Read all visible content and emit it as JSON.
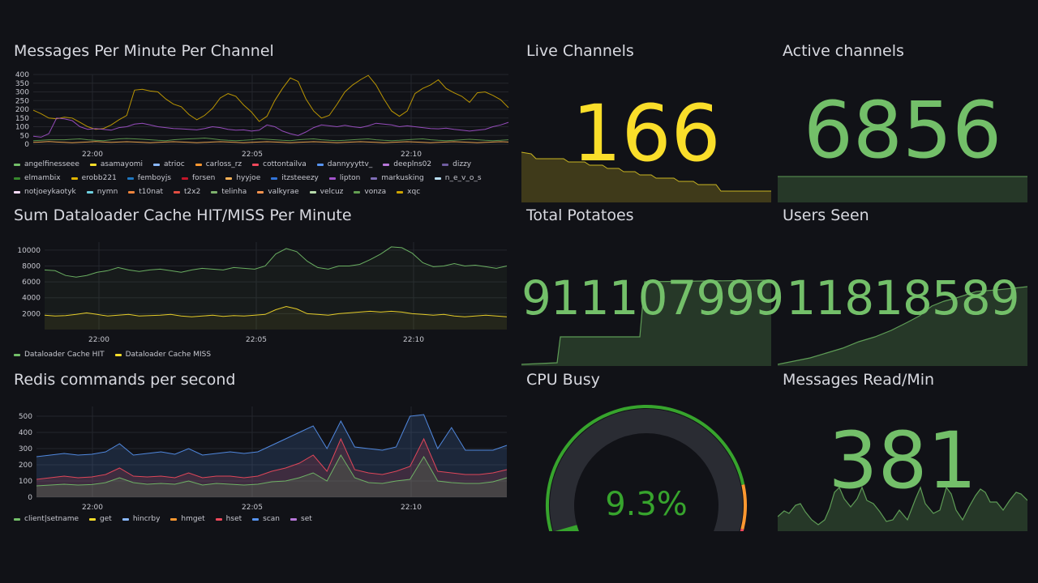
{
  "panels": {
    "messages": {
      "title": "Messages Per Minute Per Channel",
      "legend": [
        {
          "name": "angelfinesseee",
          "color": "#73bf69"
        },
        {
          "name": "asamayomi",
          "color": "#fade2a"
        },
        {
          "name": "atrioc",
          "color": "#8ab8ff"
        },
        {
          "name": "carloss_rz",
          "color": "#ff9830"
        },
        {
          "name": "cottontailva",
          "color": "#f2495c"
        },
        {
          "name": "dannyyyttv_",
          "color": "#5794f2"
        },
        {
          "name": "deeplns02",
          "color": "#b877d9"
        },
        {
          "name": "dizzy",
          "color": "#705da0"
        },
        {
          "name": "elmambix",
          "color": "#37872d"
        },
        {
          "name": "erobb221",
          "color": "#e0b400"
        },
        {
          "name": "femboyjs",
          "color": "#1f78c1"
        },
        {
          "name": "forsen",
          "color": "#c4162a"
        },
        {
          "name": "hyyjoe",
          "color": "#ffb357"
        },
        {
          "name": "itzsteeezy",
          "color": "#3274d9"
        },
        {
          "name": "lipton",
          "color": "#a352cc"
        },
        {
          "name": "markusking",
          "color": "#806eb7"
        },
        {
          "name": "n_e_v_o_s",
          "color": "#badff4"
        },
        {
          "name": "notjoeykaotyk",
          "color": "#f9d9f9"
        },
        {
          "name": "nymn",
          "color": "#6ed0e0"
        },
        {
          "name": "t10nat",
          "color": "#ef843c"
        },
        {
          "name": "t2x2",
          "color": "#e24d42"
        },
        {
          "name": "telinha",
          "color": "#7eb26d"
        },
        {
          "name": "valkyrae",
          "color": "#f9934e"
        },
        {
          "name": "velcuz",
          "color": "#b7dbab"
        },
        {
          "name": "vonza",
          "color": "#629e51"
        },
        {
          "name": "xqc",
          "color": "#cca300"
        }
      ]
    },
    "cache": {
      "title": "Sum Dataloader Cache HIT/MISS Per Minute",
      "legend": [
        {
          "name": "Dataloader Cache HIT",
          "color": "#73bf69"
        },
        {
          "name": "Dataloader Cache MISS",
          "color": "#fade2a"
        }
      ]
    },
    "redis": {
      "title": "Redis commands per second",
      "legend": [
        {
          "name": "client|setname",
          "color": "#73bf69"
        },
        {
          "name": "get",
          "color": "#fade2a"
        },
        {
          "name": "hincrby",
          "color": "#8ab8ff"
        },
        {
          "name": "hmget",
          "color": "#ff9830"
        },
        {
          "name": "hset",
          "color": "#f2495c"
        },
        {
          "name": "scan",
          "color": "#5794f2"
        },
        {
          "name": "set",
          "color": "#b877d9"
        }
      ]
    },
    "stats": {
      "live_channels": {
        "title": "Live Channels",
        "value": "166",
        "color": "#fade2a"
      },
      "active_channels": {
        "title": "Active channels",
        "value": "6856",
        "color": "#73bf69"
      },
      "total_potatoes": {
        "title": "Total Potatoes",
        "value": "911107999",
        "color": "#73bf69"
      },
      "users_seen": {
        "title": "Users Seen",
        "value": "11818589",
        "color": "#73bf69"
      },
      "cpu_busy": {
        "title": "CPU Busy",
        "value": "9.3%",
        "percent": 9.3,
        "color": "#37a42d"
      },
      "messages_read": {
        "title": "Messages Read/Min",
        "value": "381",
        "color": "#73bf69"
      }
    }
  },
  "chart_data": [
    {
      "type": "line",
      "title": "Messages Per Minute Per Channel",
      "x_ticks": [
        "22:00",
        "22:05",
        "22:10"
      ],
      "y_ticks": [
        "0",
        "50",
        "100",
        "150",
        "200",
        "250",
        "300",
        "350",
        "400"
      ],
      "ylim": [
        0,
        400
      ],
      "series": [
        {
          "name": "xqc",
          "values": [
            195,
            175,
            150,
            145,
            155,
            150,
            125,
            100,
            85,
            90,
            110,
            140,
            165,
            310,
            315,
            305,
            300,
            260,
            230,
            215,
            170,
            140,
            165,
            205,
            265,
            290,
            275,
            225,
            185,
            130,
            160,
            250,
            320,
            380,
            360,
            260,
            190,
            150,
            165,
            230,
            300,
            340,
            370,
            395,
            340,
            260,
            190,
            160,
            190,
            290,
            320,
            340,
            370,
            320,
            295,
            275,
            240,
            295,
            300,
            280,
            255,
            210
          ]
        },
        {
          "name": "lipton",
          "values": [
            45,
            40,
            60,
            150,
            145,
            135,
            100,
            85,
            90,
            85,
            80,
            95,
            100,
            115,
            120,
            110,
            100,
            95,
            90,
            88,
            85,
            82,
            90,
            100,
            95,
            85,
            80,
            82,
            75,
            80,
            110,
            100,
            75,
            60,
            50,
            70,
            95,
            110,
            105,
            100,
            108,
            100,
            95,
            105,
            120,
            115,
            110,
            100,
            105,
            100,
            95,
            90,
            88,
            92,
            85,
            80,
            75,
            80,
            85,
            100,
            110,
            125
          ]
        },
        {
          "name": "vonza",
          "values": [
            20,
            22,
            25,
            25,
            25,
            28,
            30,
            25,
            22,
            20,
            25,
            30,
            32,
            30,
            28,
            25,
            22,
            20,
            25,
            28,
            30,
            32,
            35,
            30,
            25,
            22,
            20,
            22,
            25,
            30,
            28,
            25,
            22,
            20,
            25,
            28,
            30,
            25,
            22,
            20,
            22,
            25,
            28,
            30,
            25,
            22,
            20,
            22,
            25,
            28,
            30,
            25,
            22,
            20,
            22,
            25,
            28,
            25,
            22,
            20,
            22,
            25
          ]
        },
        {
          "name": "hyyjoe",
          "values": [
            10,
            12,
            15,
            12,
            10,
            8,
            10,
            12,
            15,
            12,
            10,
            12,
            14,
            12,
            10,
            8,
            10,
            12,
            14,
            12,
            10,
            8,
            10,
            12,
            14,
            12,
            10,
            8,
            10,
            12,
            14,
            12,
            10,
            8,
            10,
            12,
            14,
            12,
            10,
            8,
            10,
            12,
            14,
            12,
            10,
            8,
            10,
            12,
            14,
            12,
            10,
            8,
            10,
            12,
            14,
            12,
            10,
            8,
            10,
            12,
            14,
            12
          ]
        }
      ]
    },
    {
      "type": "line",
      "title": "Sum Dataloader Cache HIT/MISS Per Minute",
      "x_ticks": [
        "22:00",
        "22:05",
        "22:10"
      ],
      "y_ticks": [
        "2000",
        "4000",
        "6000",
        "8000",
        "10000"
      ],
      "ylim": [
        0,
        11000
      ],
      "series": [
        {
          "name": "Dataloader Cache HIT",
          "values": [
            7500,
            7400,
            6800,
            6600,
            6800,
            7200,
            7400,
            7800,
            7500,
            7300,
            7500,
            7600,
            7400,
            7200,
            7500,
            7700,
            7600,
            7500,
            7800,
            7700,
            7600,
            8000,
            9500,
            10200,
            9800,
            8600,
            7800,
            7600,
            8000,
            8000,
            8200,
            8800,
            9500,
            10400,
            10300,
            9600,
            8400,
            7900,
            8000,
            8300,
            8000,
            8100,
            7900,
            7700,
            8000
          ]
        },
        {
          "name": "Dataloader Cache MISS",
          "values": [
            1800,
            1700,
            1750,
            1900,
            2100,
            1900,
            1700,
            1800,
            1900,
            1700,
            1750,
            1800,
            1900,
            1700,
            1600,
            1700,
            1800,
            1650,
            1750,
            1700,
            1800,
            1900,
            2500,
            2900,
            2600,
            2000,
            1900,
            1800,
            2000,
            2100,
            2200,
            2300,
            2200,
            2300,
            2200,
            2000,
            1900,
            1800,
            1900,
            1700,
            1600,
            1700,
            1800,
            1700,
            1600
          ]
        }
      ]
    },
    {
      "type": "area",
      "title": "Redis commands per second",
      "x_ticks": [
        "22:00",
        "22:05",
        "22:10"
      ],
      "y_ticks": [
        "0",
        "100",
        "200",
        "300",
        "400",
        "500"
      ],
      "ylim": [
        0,
        560
      ],
      "series": [
        {
          "name": "client|setname",
          "values": [
            70,
            75,
            80,
            75,
            78,
            90,
            120,
            90,
            80,
            85,
            80,
            100,
            75,
            85,
            80,
            75,
            80,
            95,
            100,
            120,
            150,
            100,
            260,
            120,
            90,
            85,
            100,
            110,
            250,
            100,
            90,
            85,
            85,
            95,
            120
          ]
        },
        {
          "name": "hset",
          "values": [
            110,
            120,
            130,
            120,
            125,
            140,
            180,
            130,
            125,
            130,
            120,
            150,
            120,
            130,
            130,
            120,
            130,
            160,
            180,
            210,
            260,
            160,
            360,
            170,
            150,
            140,
            160,
            190,
            360,
            160,
            150,
            140,
            140,
            150,
            170
          ]
        },
        {
          "name": "scan",
          "values": [
            250,
            260,
            270,
            260,
            265,
            280,
            330,
            260,
            270,
            280,
            265,
            300,
            260,
            270,
            280,
            270,
            280,
            320,
            360,
            400,
            440,
            300,
            470,
            310,
            300,
            290,
            310,
            500,
            510,
            300,
            430,
            290,
            290,
            290,
            320
          ]
        }
      ]
    },
    {
      "type": "gauge",
      "title": "CPU Busy",
      "value": 9.3,
      "unit": "%",
      "range": [
        0,
        100
      ]
    }
  ]
}
